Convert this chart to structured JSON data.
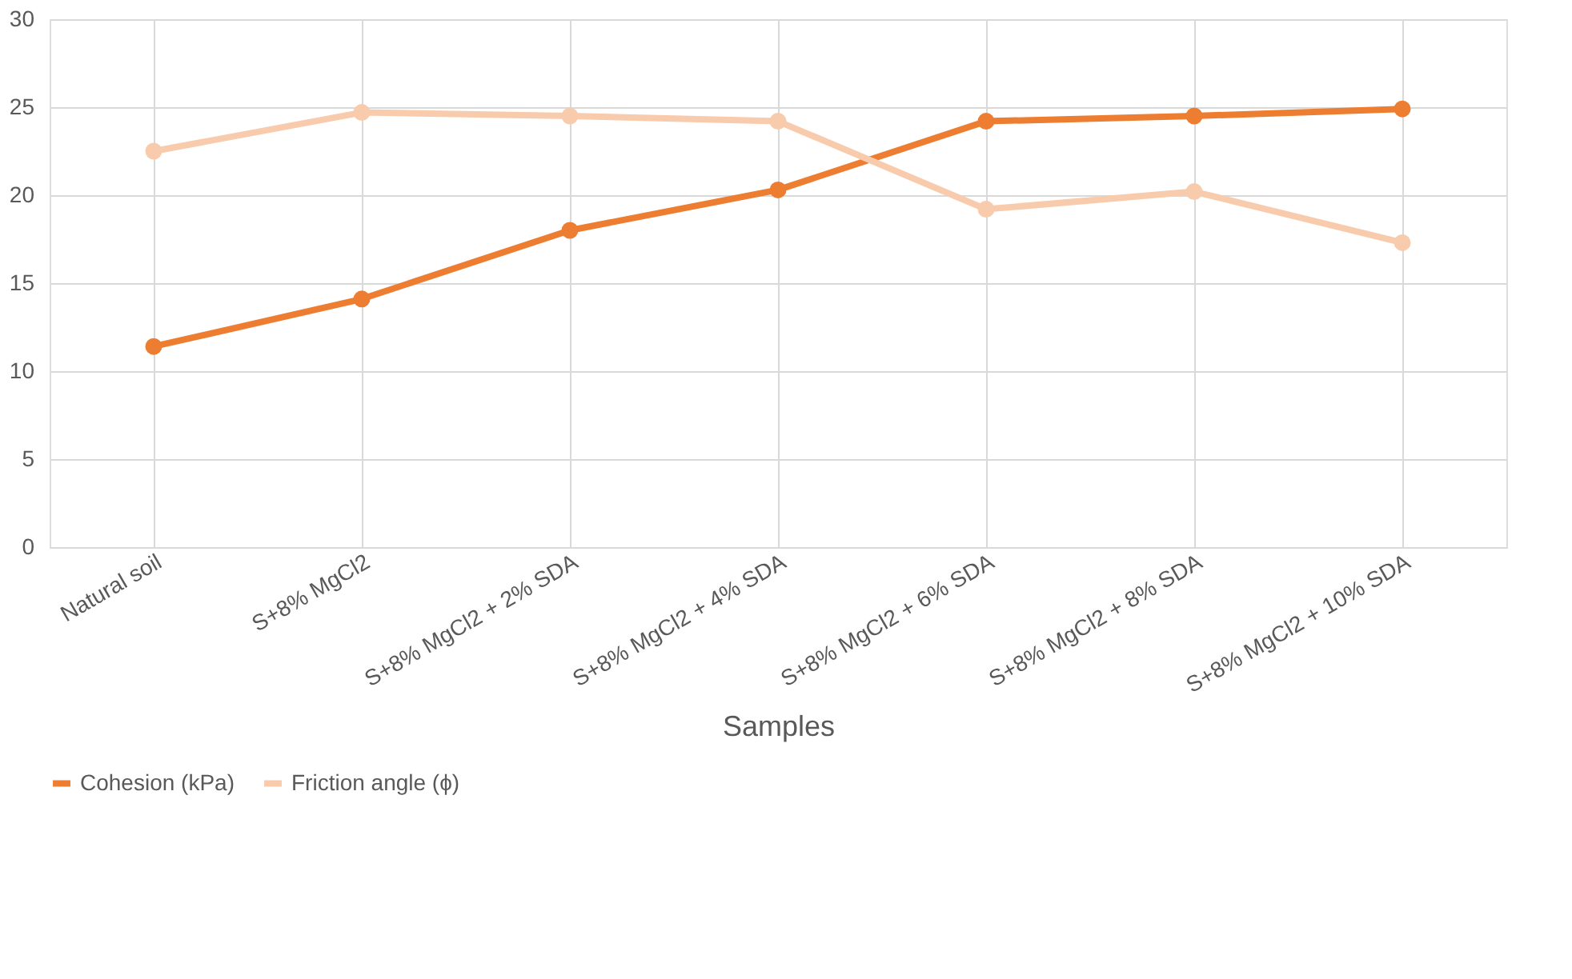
{
  "chart_data": {
    "type": "line",
    "xlabel": "Samples",
    "categories": [
      "Natural soil",
      "S+8% MgCl2",
      "S+8% MgCl2 + 2% SDA",
      "S+8% MgCl2 + 4% SDA",
      "S+8% MgCl2 + 6% SDA",
      "S+8% MgCl2 + 8% SDA",
      "S+8% MgCl2 + 10% SDA"
    ],
    "series": [
      {
        "name": "Cohesion (kPa)",
        "color": "#ed7d31",
        "values": [
          11.4,
          14.1,
          18.0,
          20.3,
          24.2,
          24.5,
          24.9
        ]
      },
      {
        "name": "Friction angle (ϕ)",
        "color": "#f8cbad",
        "values": [
          22.5,
          24.7,
          24.5,
          24.2,
          19.2,
          20.2,
          17.3
        ]
      }
    ],
    "ylim": [
      0,
      30
    ],
    "yticks": [
      0,
      5,
      10,
      15,
      20,
      25,
      30
    ],
    "grid": true,
    "legend": "bottom",
    "marker": "circle",
    "line_style": "solid"
  }
}
